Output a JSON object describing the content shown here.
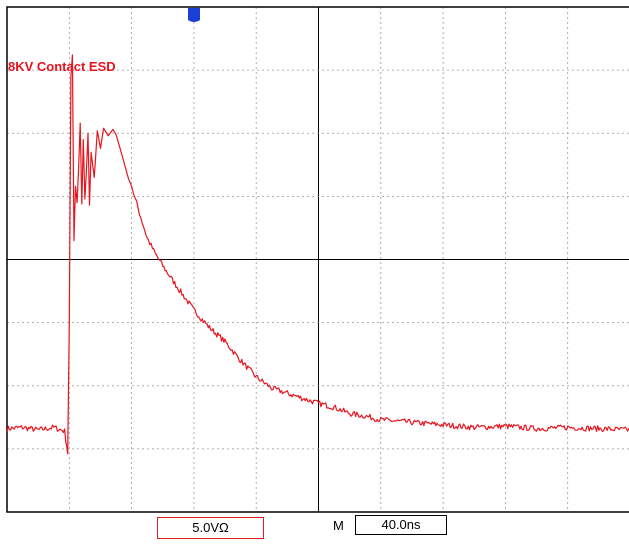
{
  "chart_data": {
    "type": "line",
    "title": "8KV Contact ESD",
    "divisions": {
      "x": 10,
      "y": 8
    },
    "xlim": [
      -40,
      360
    ],
    "ylim": [
      -25,
      15
    ],
    "x_unit": "ns",
    "y_unit": "V",
    "trigger_marker_x": 0,
    "series": [
      {
        "color": "#e8141e",
        "points": [
          [
            -40,
            -18.4
          ],
          [
            -30,
            -18.3
          ],
          [
            -20,
            -18.5
          ],
          [
            -10,
            -18.3
          ],
          [
            -3,
            -18.6
          ],
          [
            -1,
            -20.4
          ],
          [
            0,
            -10
          ],
          [
            1,
            9.5
          ],
          [
            2,
            11.2
          ],
          [
            3,
            -3.5
          ],
          [
            4,
            0.8
          ],
          [
            5,
            -0.5
          ],
          [
            6,
            2.2
          ],
          [
            7,
            5.8
          ],
          [
            8,
            -0.6
          ],
          [
            9,
            4.5
          ],
          [
            10,
            -0.2
          ],
          [
            11,
            2.0
          ],
          [
            12,
            5.0
          ],
          [
            13,
            -0.7
          ],
          [
            14,
            3.5
          ],
          [
            16,
            1.5
          ],
          [
            18,
            5.2
          ],
          [
            20,
            3.8
          ],
          [
            22,
            5.4
          ],
          [
            25,
            4.8
          ],
          [
            28,
            5.3
          ],
          [
            30,
            4.9
          ],
          [
            34,
            3.2
          ],
          [
            38,
            1.4
          ],
          [
            40,
            0.8
          ],
          [
            45,
            -1.3
          ],
          [
            50,
            -3.3
          ],
          [
            55,
            -4.5
          ],
          [
            60,
            -5.5
          ],
          [
            70,
            -7.3
          ],
          [
            80,
            -9.0
          ],
          [
            90,
            -10.4
          ],
          [
            100,
            -11.5
          ],
          [
            110,
            -13.0
          ],
          [
            120,
            -14.3
          ],
          [
            130,
            -15.2
          ],
          [
            140,
            -15.6
          ],
          [
            150,
            -16.0
          ],
          [
            160,
            -16.4
          ],
          [
            170,
            -16.7
          ],
          [
            180,
            -17.2
          ],
          [
            190,
            -17.4
          ],
          [
            200,
            -17.7
          ],
          [
            220,
            -17.9
          ],
          [
            240,
            -18.1
          ],
          [
            260,
            -18.3
          ],
          [
            280,
            -18.2
          ],
          [
            300,
            -18.4
          ],
          [
            320,
            -18.3
          ],
          [
            340,
            -18.4
          ],
          [
            360,
            -18.5
          ]
        ]
      }
    ]
  },
  "readouts": {
    "volts_per_div": "5.0VΩ",
    "m_label": "M",
    "time_per_div": "40.0ns"
  },
  "colors": {
    "trace": "#e8141e",
    "title": "#e8141e",
    "grid_minor": "#9a9a9a",
    "grid_major": "#000000",
    "trigger_marker": "#1a3fd6"
  }
}
